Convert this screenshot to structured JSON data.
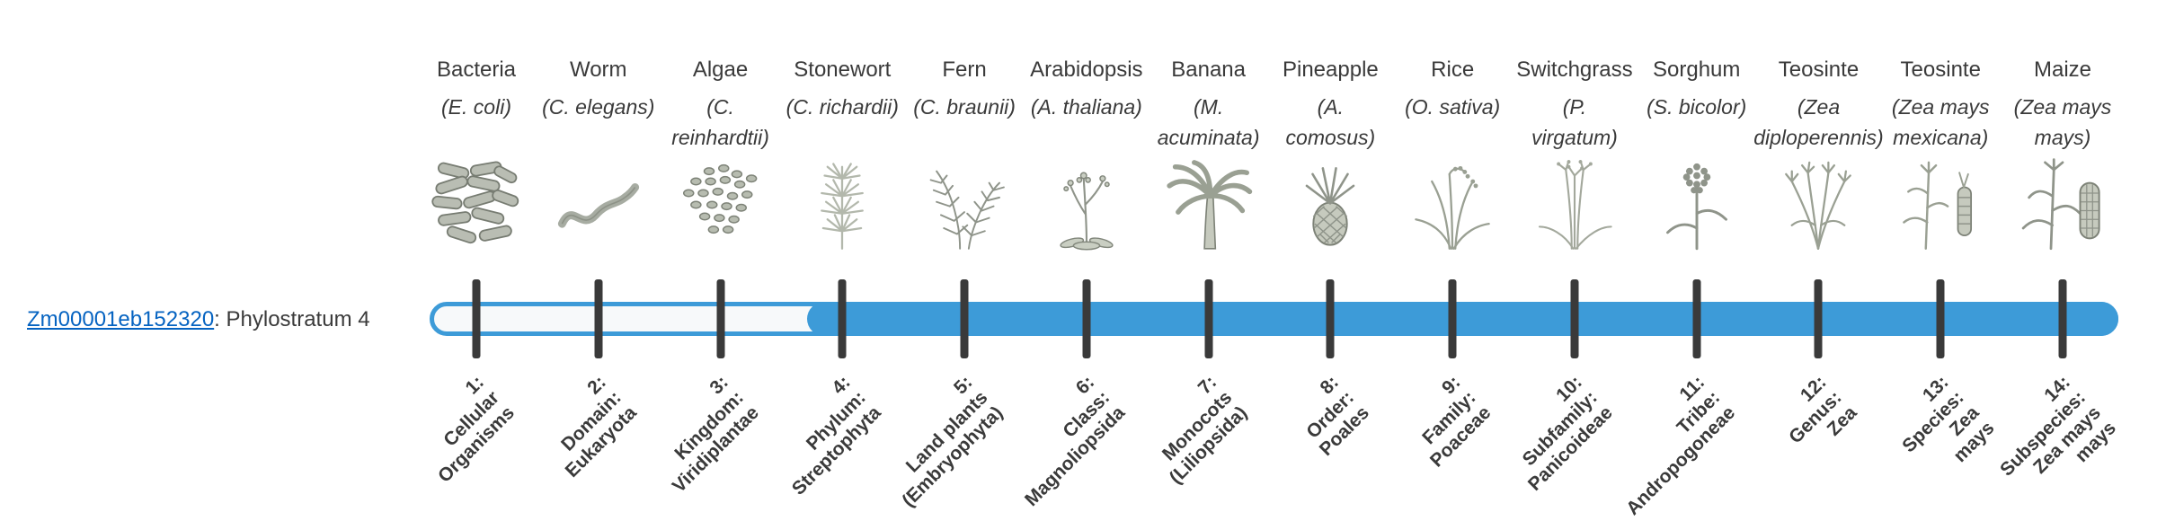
{
  "gene": {
    "id": "Zm00001eb152320",
    "suffix": ": Phylostratum 4",
    "highlighted_stratum": 4
  },
  "colors": {
    "bar_blue": "#3d9bd8",
    "tick_dark": "#3a3a3a",
    "link_blue": "#0563c1"
  },
  "species": [
    {
      "common": "Bacteria",
      "sci": "(E. coli)",
      "icon": "bacteria-icon",
      "icon_ref": "#i-bacteria"
    },
    {
      "common": "Worm",
      "sci": "(C. elegans)",
      "icon": "worm-icon",
      "icon_ref": "#i-worm"
    },
    {
      "common": "Algae",
      "sci": "(C.\nreinhardtii)",
      "icon": "algae-icon",
      "icon_ref": "#i-algae"
    },
    {
      "common": "Stonewort",
      "sci": "(C. richardii)",
      "icon": "stonewort-icon",
      "icon_ref": "#i-stonewort"
    },
    {
      "common": "Fern",
      "sci": "(C. braunii)",
      "icon": "fern-icon",
      "icon_ref": "#i-fern"
    },
    {
      "common": "Arabidopsis",
      "sci": "(A. thaliana)",
      "icon": "arabidopsis-icon",
      "icon_ref": "#i-arabidopsis"
    },
    {
      "common": "Banana",
      "sci": "(M.\nacuminata)",
      "icon": "banana-plant-icon",
      "icon_ref": "#i-banana"
    },
    {
      "common": "Pineapple",
      "sci": "(A.\ncomosus)",
      "icon": "pineapple-icon",
      "icon_ref": "#i-pineapple"
    },
    {
      "common": "Rice",
      "sci": "(O. sativa)",
      "icon": "rice-plant-icon",
      "icon_ref": "#i-rice"
    },
    {
      "common": "Switchgrass",
      "sci": "(P.\nvirgatum)",
      "icon": "switchgrass-icon",
      "icon_ref": "#i-switchgrass"
    },
    {
      "common": "Sorghum",
      "sci": "(S. bicolor)",
      "icon": "sorghum-icon",
      "icon_ref": "#i-sorghum"
    },
    {
      "common": "Teosinte",
      "sci": "(Zea\ndiploperennis)",
      "icon": "teosinte-diploperennis-icon",
      "icon_ref": "#i-teosinte1"
    },
    {
      "common": "Teosinte",
      "sci": "(Zea mays\nmexicana)",
      "icon": "teosinte-mexicana-icon",
      "icon_ref": "#i-teosinte2"
    },
    {
      "common": "Maize",
      "sci": "(Zea mays\nmays)",
      "icon": "maize-plant-icon",
      "icon_ref": "#i-maize"
    }
  ],
  "phylostrata": [
    {
      "label": "1:\nCellular\nOrganisms"
    },
    {
      "label": "2:\nDomain:\nEukaryota"
    },
    {
      "label": "3:\nKingdom:\nViridiplantae"
    },
    {
      "label": "4:\nPhylum:\nStreptophyta"
    },
    {
      "label": "5:\nLand plants\n(Embryophyta)"
    },
    {
      "label": "6:\nClass:\nMagnoliopsida"
    },
    {
      "label": "7:\nMonocots\n(Liliopsida)"
    },
    {
      "label": "8:\nOrder:\nPoales"
    },
    {
      "label": "9:\nFamily:\nPoaceae"
    },
    {
      "label": "10:\nSubfamily:\nPanicoideae"
    },
    {
      "label": "11:\nTribe:\nAndropogoneae"
    },
    {
      "label": "12:\nGenus:\nZea"
    },
    {
      "label": "13:\nSpecies:\nZea\nmays"
    },
    {
      "label": "14:\nSubspecies:\nZea mays\nmays"
    }
  ]
}
